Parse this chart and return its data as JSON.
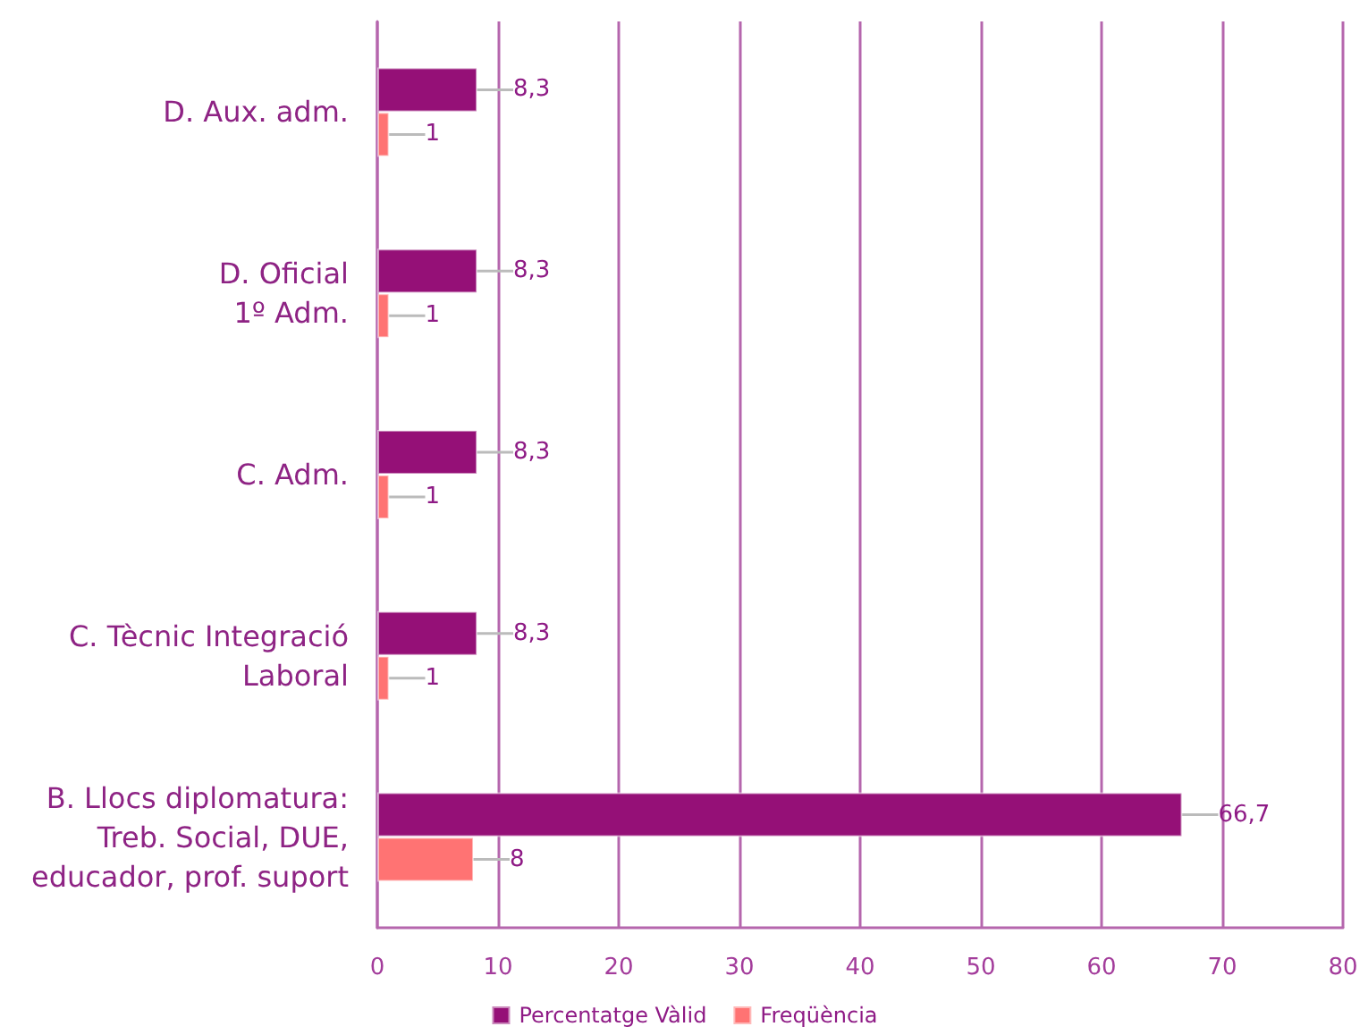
{
  "chart_data": {
    "type": "bar",
    "orientation": "horizontal",
    "categories": [
      "D. Aux. adm.",
      "D. Oficial\n1º Adm.",
      "C. Adm.",
      "C. Tècnic Integració\nLaboral",
      "B. Llocs diplomatura:\nTreb. Social, DUE,\neducador, prof. suport"
    ],
    "series": [
      {
        "name": "Percentatge Vàlid",
        "color": "#951077",
        "values": [
          8.3,
          8.3,
          8.3,
          8.3,
          66.7
        ],
        "value_labels": [
          "8,3",
          "8,3",
          "8,3",
          "8,3",
          "66,7"
        ]
      },
      {
        "name": "Freqüència",
        "color": "#ff7373",
        "values": [
          1,
          1,
          1,
          1,
          8
        ],
        "value_labels": [
          "1",
          "1",
          "1",
          "1",
          "8"
        ]
      }
    ],
    "xlim": [
      0,
      80
    ],
    "xticks": [
      0,
      10,
      20,
      30,
      40,
      50,
      60,
      70,
      80
    ],
    "grid": "x",
    "legend": "bottom"
  }
}
